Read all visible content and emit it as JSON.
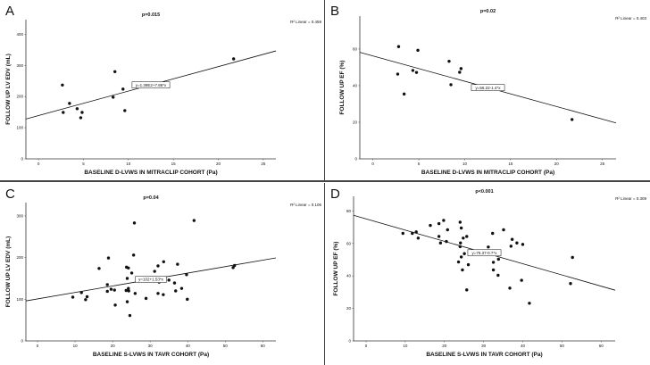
{
  "chart_data": [
    {
      "type": "scatter",
      "panel_label": "A",
      "title": "p=0.015",
      "r2_label": "R² Linear = 0.459",
      "fit_label": "y=1.39E2+7.86*x",
      "fit": {
        "intercept": 139,
        "slope": 7.86
      },
      "xlabel": "BASELINE D-LVWS IN MITRACLIP COHORT (Pa)",
      "ylabel": "FOLLOW UP LV EDV (mL)",
      "xlim": [
        -1.4,
        26.4
      ],
      "ylim": [
        0,
        447
      ],
      "xticks": [
        0,
        5,
        10,
        15,
        20,
        25
      ],
      "yticks": [
        0,
        100,
        200,
        300,
        400
      ],
      "x": [
        2.66,
        2.75,
        3.45,
        4.3,
        4.7,
        4.85,
        8.3,
        8.5,
        9.4,
        9.6,
        21.7
      ],
      "y": [
        237,
        149,
        178,
        161,
        132,
        149,
        198,
        280,
        224,
        155,
        321
      ]
    },
    {
      "type": "scatter",
      "panel_label": "B",
      "title": "p=0.02",
      "r2_label": "R² Linear = 0.403",
      "fit_label": "y=56.22-1.4*x",
      "fit": {
        "intercept": 56.2,
        "slope": -1.38
      },
      "xlabel": "BASELINE D-LVWS IN MITRACLIP COHORT (Pa)",
      "ylabel": "FOLLOW UP EF (%)",
      "xlim": [
        -1.43,
        26.5
      ],
      "ylim": [
        0,
        78
      ],
      "xticks": [
        0,
        5,
        10,
        15,
        20,
        25
      ],
      "yticks": [
        0,
        20,
        40,
        60
      ],
      "x": [
        2.8,
        2.7,
        3.4,
        4.35,
        4.75,
        4.9,
        8.3,
        8.5,
        9.45,
        9.6,
        21.7
      ],
      "y": [
        61.3,
        46.3,
        35.4,
        48.3,
        47.2,
        59.3,
        53.3,
        40.5,
        47.3,
        49.3,
        21.5
      ]
    },
    {
      "type": "scatter",
      "panel_label": "C",
      "title": "p=0.04",
      "r2_label": "R² Linear = 0.106",
      "fit_label": "y=102+1.53*x",
      "fit": {
        "intercept": 100.8,
        "slope": 1.55
      },
      "xlabel": "BASELINE S-LVWS IN TAVR COHORT (Pa)",
      "ylabel": "FOLLOW UP LV EDV (mL)",
      "xlim": [
        -3.1,
        63.5
      ],
      "ylim": [
        0,
        332
      ],
      "xticks": [
        0,
        10,
        20,
        30,
        40,
        50,
        60
      ],
      "yticks": [
        0,
        100,
        200,
        300
      ],
      "x": [
        9.4,
        11.7,
        12.8,
        13.2,
        16.4,
        18.6,
        18.6,
        18.9,
        19.6,
        20.5,
        20.7,
        23.6,
        23.7,
        23.9,
        23.9,
        24.2,
        24.2,
        24.3,
        24.6,
        25.1,
        25.6,
        25.8,
        26.0,
        28.9,
        31.2,
        32.1,
        32.1,
        32.4,
        33.6,
        33.5,
        35.0,
        36.5,
        36.8,
        37.3,
        38.4,
        39.7,
        39.9,
        41.7,
        52.1,
        52.5
      ],
      "y": [
        105,
        116,
        99,
        106,
        174,
        135,
        119,
        199,
        124,
        122,
        86,
        121,
        177,
        150,
        94,
        175,
        126,
        120,
        61,
        163,
        206,
        283,
        114,
        102,
        167,
        180,
        114,
        141,
        190,
        111,
        146,
        139,
        120,
        184,
        126,
        159,
        100,
        289,
        176,
        181
      ]
    },
    {
      "type": "scatter",
      "panel_label": "D",
      "title": "p<0.001",
      "r2_label": "R² Linear = 0.309",
      "fit_label": "y=75.37-0.7*x",
      "fit": {
        "intercept": 75.1,
        "slope": -0.69
      },
      "xlabel": "BASELINE S-LVWS IN TAVR COHORT (Pa)",
      "ylabel": "FOLLOW UP EF (%)",
      "xlim": [
        -3.2,
        63.6
      ],
      "ylim": [
        0,
        89
      ],
      "xticks": [
        0,
        10,
        20,
        30,
        40,
        50,
        60
      ],
      "yticks": [
        0,
        20,
        40,
        60,
        80
      ],
      "x": [
        9.4,
        11.8,
        12.8,
        13.3,
        16.4,
        18.6,
        18.6,
        19.0,
        19.8,
        20.5,
        20.8,
        23.6,
        24.0,
        24.0,
        24.1,
        24.3,
        24.3,
        24.6,
        24.8,
        25.1,
        25.7,
        25.7,
        26.1,
        31.2,
        32.3,
        32.5,
        32.5,
        33.8,
        33.7,
        35.1,
        36.7,
        37.0,
        37.3,
        38.5,
        39.7,
        40.0,
        41.7,
        52.2,
        52.7
      ],
      "y": [
        66.2,
        66.2,
        67.1,
        63.3,
        71.1,
        64.3,
        72.2,
        60.3,
        74.2,
        61.2,
        68.4,
        48.6,
        73.1,
        58.0,
        60.3,
        69.5,
        51.7,
        43.7,
        63.3,
        53.7,
        64.3,
        31.4,
        46.9,
        57.8,
        66.2,
        48.4,
        43.7,
        50.3,
        40.4,
        68.4,
        32.5,
        58.3,
        62.5,
        60.3,
        37.3,
        59.4,
        23.2,
        35.3,
        51.4
      ]
    }
  ]
}
